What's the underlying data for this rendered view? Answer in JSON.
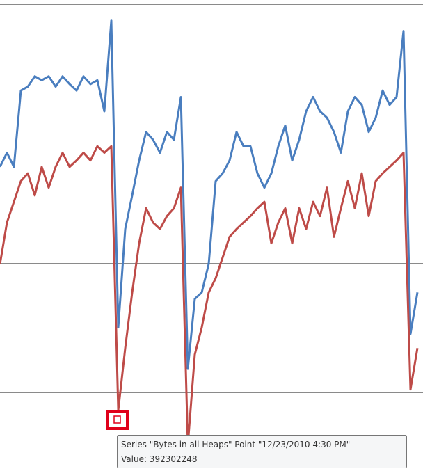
{
  "chart_data": {
    "type": "line",
    "categories": [
      null,
      null,
      null,
      null,
      null,
      null,
      null,
      null,
      null,
      null,
      null,
      null,
      null,
      null,
      null,
      null,
      null,
      null,
      null,
      null,
      null,
      null,
      null,
      null,
      null,
      null,
      null,
      null,
      null,
      null,
      null,
      null,
      null,
      null,
      null,
      null,
      null,
      null,
      null,
      null,
      null,
      null,
      null,
      null,
      null,
      null,
      null,
      null,
      null,
      null,
      null,
      null,
      null,
      null,
      null,
      null,
      null,
      null,
      null,
      null,
      null
    ],
    "series": [
      {
        "color": "#4a7ebf",
        "values": [
          1.74,
          1.85,
          1.74,
          2.33,
          2.36,
          2.44,
          2.41,
          2.44,
          2.36,
          2.44,
          2.38,
          2.33,
          2.44,
          2.38,
          2.41,
          2.17,
          2.87,
          0.5,
          1.26,
          1.52,
          1.79,
          2.01,
          1.95,
          1.85,
          2.01,
          1.95,
          2.28,
          0.18,
          0.72,
          0.77,
          0.99,
          1.63,
          1.69,
          1.79,
          2.01,
          1.9,
          1.9,
          1.69,
          1.58,
          1.69,
          1.9,
          2.06,
          1.79,
          1.95,
          2.17,
          2.28,
          2.17,
          2.12,
          2.01,
          1.85,
          2.17,
          2.28,
          2.22,
          2.01,
          2.12,
          2.33,
          2.22,
          2.28,
          2.79,
          0.45,
          0.77
        ]
      },
      {
        "color": "#be4b48",
        "values": [
          0.99,
          1.31,
          1.47,
          1.63,
          1.69,
          1.52,
          1.74,
          1.58,
          1.74,
          1.85,
          1.74,
          1.79,
          1.85,
          1.79,
          1.9,
          1.85,
          1.9,
          -0.14,
          0.34,
          0.77,
          1.15,
          1.42,
          1.31,
          1.26,
          1.36,
          1.42,
          1.58,
          -0.41,
          0.29,
          0.5,
          0.77,
          0.88,
          1.04,
          1.2,
          1.26,
          1.31,
          1.36,
          1.42,
          1.47,
          1.15,
          1.31,
          1.42,
          1.15,
          1.42,
          1.26,
          1.47,
          1.36,
          1.58,
          1.2,
          1.42,
          1.63,
          1.42,
          1.69,
          1.36,
          1.63,
          1.69,
          1.74,
          1.79,
          1.85,
          0.02,
          0.34
        ]
      }
    ],
    "ylim": [
      -0.61,
      3.03
    ],
    "yticks": [
      0,
      1,
      2,
      3
    ],
    "grid": true,
    "tooltip": [
      "Series \"Bytes in all Heaps\" Point \"12/23/2010 4:30 PM\"",
      "Value: 392302248"
    ]
  }
}
